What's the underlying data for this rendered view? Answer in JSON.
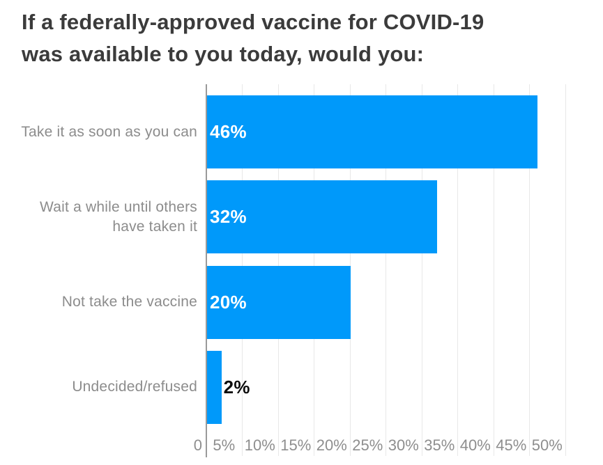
{
  "title": {
    "line1": "If a federally-approved vaccine for COVID-19",
    "line2": "was available to you today, would you:"
  },
  "chart_data": {
    "type": "bar",
    "orientation": "horizontal",
    "title": "If a federally-approved vaccine for COVID-19 was available to you today, would you:",
    "categories": [
      "Take it as soon as you can",
      "Wait a while until others\nhave taken it",
      "Not take the vaccine",
      "Undecided/refused"
    ],
    "values": [
      46,
      32,
      20,
      2
    ],
    "value_labels": [
      "46%",
      "32%",
      "20%",
      "2%"
    ],
    "x_tick_labels": [
      "0",
      "5%",
      "10%",
      "15%",
      "20%",
      "25%",
      "30%",
      "35%",
      "40%",
      "45%",
      "50%"
    ],
    "xlim": [
      0,
      50
    ],
    "grid": true,
    "legend": false,
    "colors": {
      "bar": "#0099fa",
      "value_label_inside": "#ffffff",
      "value_label_outside": "#0d0d0d",
      "category_label": "#8c8c8c",
      "tick_label": "#8e8e8e",
      "gridline": "#e8e8e8",
      "axis_line": "#9a9a9a",
      "title": "#3b3b3b"
    }
  }
}
